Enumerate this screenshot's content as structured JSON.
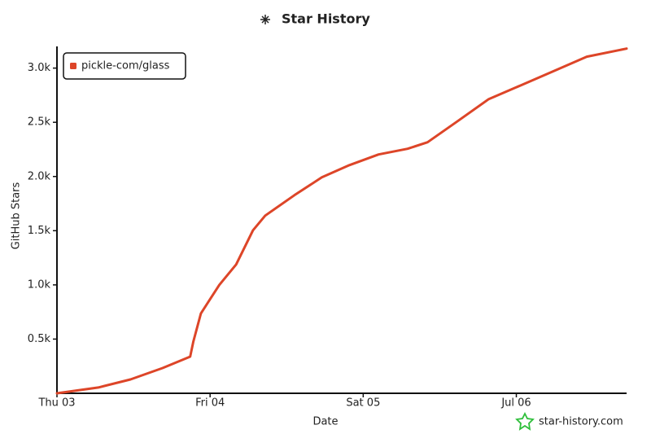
{
  "chart_data": {
    "type": "line",
    "title": "Star History",
    "x_label": "Date",
    "y_label": "GitHub Stars",
    "watermark": "star-history.com",
    "legend": "upper left",
    "grid": false,
    "x": [
      3.0,
      3.27,
      3.48,
      3.69,
      3.87,
      3.89,
      3.94,
      4.06,
      4.17,
      4.28,
      4.36,
      4.55,
      4.73,
      4.91,
      5.1,
      5.29,
      5.42,
      5.61,
      5.82,
      6.03,
      6.24,
      6.46,
      6.72
    ],
    "series": [
      {
        "name": "pickle-com/glass",
        "color": "#dd4528",
        "values": [
          0,
          53,
          128,
          233,
          338,
          474,
          737,
          1000,
          1188,
          1504,
          1639,
          1827,
          1992,
          2105,
          2203,
          2256,
          2316,
          2504,
          2714,
          2842,
          2970,
          3105,
          3180
        ]
      }
    ],
    "xlim": [
      3,
      6.72
    ],
    "xticks": [
      {
        "value": 3,
        "label": "Thu 03"
      },
      {
        "value": 4,
        "label": "Fri 04"
      },
      {
        "value": 5,
        "label": "Sat 05"
      },
      {
        "value": 6,
        "label": "Jul 06"
      }
    ],
    "ylim": [
      0,
      3200
    ],
    "yticks": [
      {
        "value": 500,
        "label": "0.5k"
      },
      {
        "value": 1000,
        "label": "1.0k"
      },
      {
        "value": 1500,
        "label": "1.5k"
      },
      {
        "value": 2000,
        "label": "2.0k"
      },
      {
        "value": 2500,
        "label": "2.5k"
      },
      {
        "value": 3000,
        "label": "3.0k"
      }
    ]
  }
}
